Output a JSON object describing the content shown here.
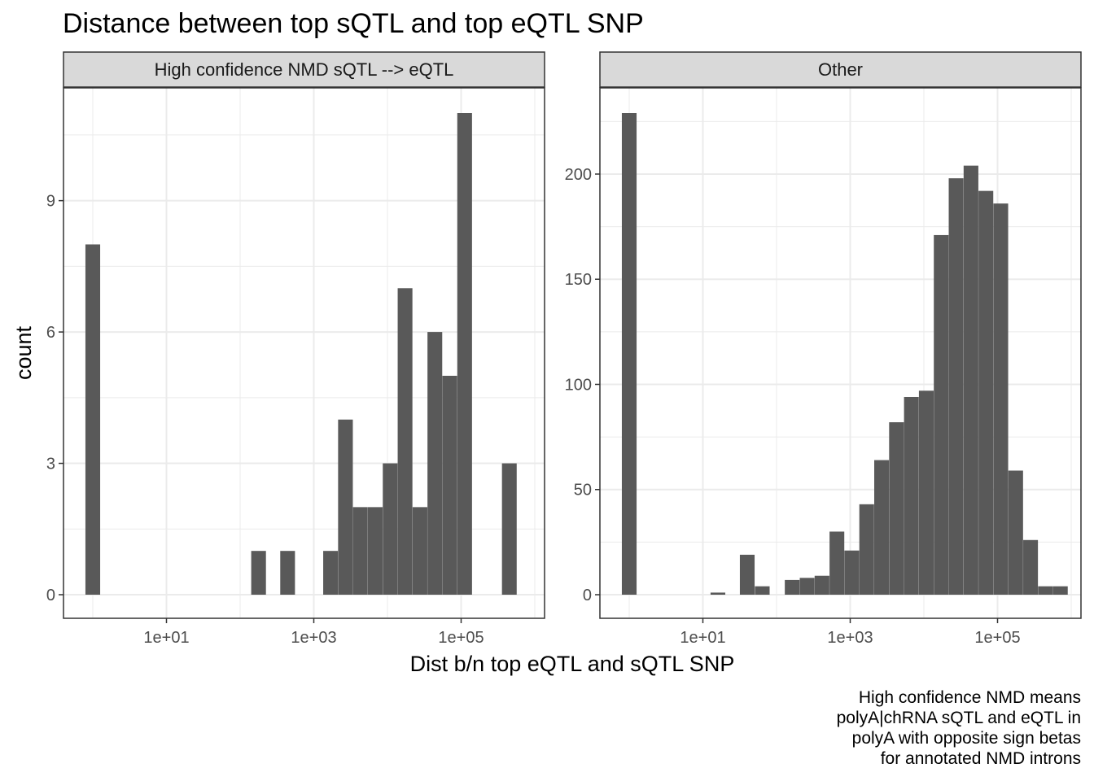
{
  "chart_data": {
    "type": "bar",
    "title": "Distance between top sQTL and top eQTL SNP",
    "xlabel": "Dist b/n top eQTL and sQTL SNP",
    "ylabel": "count",
    "x_scale": "log10",
    "x_tick_labels": [
      "1e+01",
      "1e+03",
      "1e+05"
    ],
    "x_tick_values": [
      10,
      1000,
      100000
    ],
    "caption": [
      "High confidence NMD means",
      "polyA|chRNA sQTL and eQTL in",
      "polyA with opposite sign betas",
      "for annotated NMD introns"
    ],
    "panels": [
      {
        "strip": "High confidence NMD sQTL --> eQTL",
        "ylim": [
          0,
          11
        ],
        "y_ticks": [
          0,
          3,
          6,
          9
        ],
        "bars": [
          {
            "x": 1,
            "count": 8
          },
          {
            "x": 178,
            "count": 1
          },
          {
            "x": 441,
            "count": 1
          },
          {
            "x": 1689,
            "count": 1
          },
          {
            "x": 2691,
            "count": 4
          },
          {
            "x": 4287,
            "count": 2
          },
          {
            "x": 6829,
            "count": 2
          },
          {
            "x": 10879,
            "count": 3
          },
          {
            "x": 17331,
            "count": 7
          },
          {
            "x": 27609,
            "count": 2
          },
          {
            "x": 43981,
            "count": 6
          },
          {
            "x": 70063,
            "count": 5
          },
          {
            "x": 111612,
            "count": 11
          },
          {
            "x": 451213,
            "count": 3
          }
        ]
      },
      {
        "strip": "Other",
        "ylim": [
          0,
          229
        ],
        "y_ticks": [
          0,
          50,
          100,
          150,
          200
        ],
        "bars": [
          {
            "x": 1,
            "count": 229
          },
          {
            "x": 16,
            "count": 1
          },
          {
            "x": 40,
            "count": 19
          },
          {
            "x": 64,
            "count": 4
          },
          {
            "x": 163,
            "count": 7
          },
          {
            "x": 260,
            "count": 8
          },
          {
            "x": 414,
            "count": 9
          },
          {
            "x": 660,
            "count": 30
          },
          {
            "x": 1051,
            "count": 21
          },
          {
            "x": 1674,
            "count": 43
          },
          {
            "x": 2667,
            "count": 64
          },
          {
            "x": 4249,
            "count": 82
          },
          {
            "x": 6769,
            "count": 94
          },
          {
            "x": 10784,
            "count": 97
          },
          {
            "x": 17180,
            "count": 171
          },
          {
            "x": 27370,
            "count": 198
          },
          {
            "x": 43603,
            "count": 204
          },
          {
            "x": 69465,
            "count": 192
          },
          {
            "x": 110666,
            "count": 186
          },
          {
            "x": 176302,
            "count": 59
          },
          {
            "x": 280868,
            "count": 26
          },
          {
            "x": 447456,
            "count": 4
          },
          {
            "x": 712856,
            "count": 4
          }
        ]
      }
    ]
  }
}
